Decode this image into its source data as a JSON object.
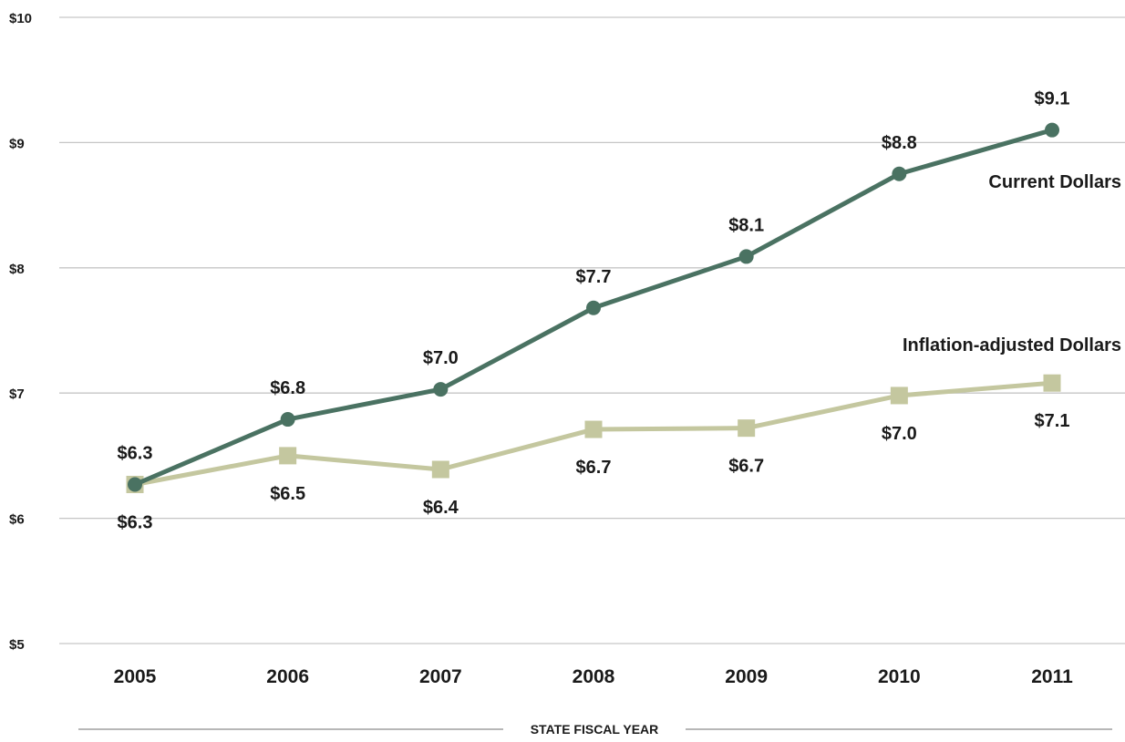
{
  "chart_data": {
    "type": "line",
    "title": "",
    "xlabel": "STATE FISCAL YEAR",
    "ylabel": "",
    "categories": [
      "2005",
      "2006",
      "2007",
      "2008",
      "2009",
      "2010",
      "2011"
    ],
    "ylim": [
      5,
      10
    ],
    "yticks": [
      5,
      6,
      7,
      8,
      9,
      10
    ],
    "ytick_labels": [
      "$5",
      "$6",
      "$7",
      "$8",
      "$9",
      "$10"
    ],
    "grid": true,
    "legend": "none (series labeled directly on chart)",
    "series": [
      {
        "name": "Current Dollars",
        "marker": "circle",
        "color": "#4a7262",
        "values": [
          6.27,
          6.79,
          7.03,
          7.68,
          8.09,
          8.75,
          9.1
        ],
        "data_labels": [
          "$6.3",
          "$6.8",
          "$7.0",
          "$7.7",
          "$8.1",
          "$8.8",
          "$9.1"
        ],
        "label_position": "above"
      },
      {
        "name": "Inflation-adjusted Dollars",
        "marker": "square",
        "color": "#c4c79f",
        "values": [
          6.27,
          6.5,
          6.39,
          6.71,
          6.72,
          6.98,
          7.08
        ],
        "data_labels": [
          "$6.3",
          "$6.5",
          "$6.4",
          "$6.7",
          "$6.7",
          "$7.0",
          "$7.1"
        ],
        "label_position": "below"
      }
    ]
  }
}
